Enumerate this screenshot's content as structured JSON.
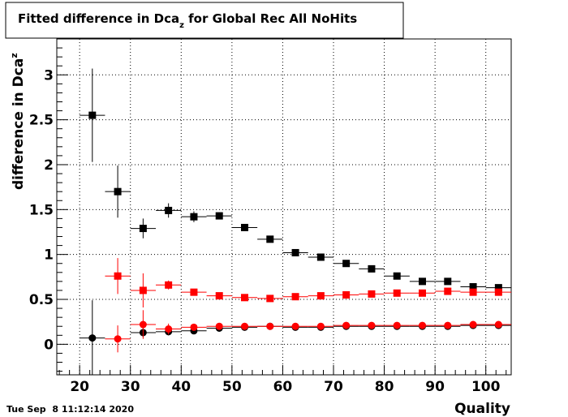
{
  "chart_data": {
    "type": "scatter",
    "title_main": "Fitted difference in Dca",
    "title_sub": "z",
    "title_rest": " for Global Rec All NoHits",
    "xlabel": "Quality",
    "ylabel_main": "difference in Dca",
    "ylabel_sub": "z",
    "xlim": [
      15.5,
      105
    ],
    "ylim": [
      -0.34,
      3.4
    ],
    "grid": true,
    "x_ticks": [
      20,
      30,
      40,
      50,
      60,
      70,
      80,
      90,
      100
    ],
    "x_tick_labels": [
      "20",
      "30",
      "40",
      "50",
      "60",
      "70",
      "80",
      "90",
      "100"
    ],
    "y_ticks": [
      0,
      0.5,
      1,
      1.5,
      2,
      2.5,
      3
    ],
    "y_tick_labels": [
      "0",
      "0.5",
      "1",
      "1.5",
      "2",
      "2.5",
      "3"
    ],
    "x_err": 2.5,
    "series": [
      {
        "marker": "square",
        "color": "#000000",
        "x": [
          22.5,
          27.5,
          32.5,
          37.5,
          42.5,
          47.5,
          52.5,
          57.5,
          62.5,
          67.5,
          72.5,
          77.5,
          82.5,
          87.5,
          92.5,
          97.5,
          102.5
        ],
        "y": [
          2.55,
          1.7,
          1.29,
          1.49,
          1.42,
          1.43,
          1.3,
          1.17,
          1.02,
          0.97,
          0.9,
          0.84,
          0.76,
          0.7,
          0.7,
          0.64,
          0.63
        ],
        "yerr": [
          0.52,
          0.29,
          0.11,
          0.08,
          0.06,
          0.04,
          0.03,
          0.03,
          0.02,
          0.02,
          0.02,
          0.02,
          0.02,
          0.02,
          0.02,
          0.02,
          0.02
        ]
      },
      {
        "marker": "square",
        "color": "#ff0000",
        "x": [
          27.5,
          32.5,
          37.5,
          42.5,
          47.5,
          52.5,
          57.5,
          62.5,
          67.5,
          72.5,
          77.5,
          82.5,
          87.5,
          92.5,
          97.5,
          102.5
        ],
        "y": [
          0.76,
          0.6,
          0.66,
          0.58,
          0.54,
          0.52,
          0.51,
          0.53,
          0.54,
          0.55,
          0.56,
          0.57,
          0.57,
          0.59,
          0.58,
          0.58
        ],
        "yerr": [
          0.2,
          0.19,
          0.05,
          0.03,
          0.02,
          0.02,
          0.02,
          0.02,
          0.02,
          0.02,
          0.02,
          0.02,
          0.02,
          0.02,
          0.02,
          0.02
        ]
      },
      {
        "marker": "circle",
        "color": "#000000",
        "x": [
          22.5,
          32.5,
          37.5,
          42.5,
          47.5,
          52.5,
          57.5,
          62.5,
          67.5,
          72.5,
          77.5,
          82.5,
          87.5,
          92.5,
          97.5,
          102.5
        ],
        "y": [
          0.07,
          0.13,
          0.14,
          0.15,
          0.18,
          0.19,
          0.2,
          0.19,
          0.19,
          0.2,
          0.2,
          0.2,
          0.2,
          0.2,
          0.21,
          0.21
        ],
        "yerr": [
          0.42,
          0.05,
          0.04,
          0.03,
          0.02,
          0.02,
          0.02,
          0.02,
          0.02,
          0.02,
          0.02,
          0.02,
          0.02,
          0.02,
          0.02,
          0.02
        ]
      },
      {
        "marker": "circle",
        "color": "#ff0000",
        "x": [
          27.5,
          32.5,
          37.5,
          42.5,
          47.5,
          52.5,
          57.5,
          62.5,
          67.5,
          72.5,
          77.5,
          82.5,
          87.5,
          92.5,
          97.5,
          102.5
        ],
        "y": [
          0.06,
          0.22,
          0.17,
          0.19,
          0.2,
          0.2,
          0.2,
          0.2,
          0.2,
          0.21,
          0.21,
          0.21,
          0.21,
          0.21,
          0.22,
          0.22
        ],
        "yerr": [
          0.15,
          0.16,
          0.06,
          0.03,
          0.02,
          0.02,
          0.02,
          0.02,
          0.02,
          0.02,
          0.02,
          0.02,
          0.02,
          0.02,
          0.02,
          0.02
        ]
      }
    ]
  },
  "footer": {
    "timestamp": "Tue Sep  8 11:12:14 2020"
  }
}
